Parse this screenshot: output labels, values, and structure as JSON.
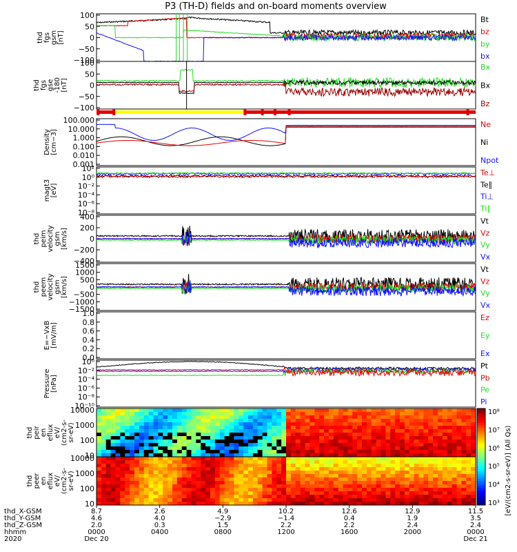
{
  "title": "P3 (TH-D) fields and on-board moments overview",
  "colors": {
    "black": "#000000",
    "red": "#e00000",
    "green": "#22dd22",
    "blue": "#1010ff",
    "dark_red": "#990000",
    "yellow": "#ffff00"
  },
  "chart_data": {
    "type": "line",
    "time_range": [
      "2020-12-20 00:00",
      "2020-12-21 00:00"
    ],
    "panels": [
      {
        "ylabel": [
          "thd",
          "fgs",
          "gsm",
          "[nT]"
        ],
        "ticks": [
          "100",
          "50",
          "0",
          "−50",
          "−100"
        ],
        "legend": [
          {
            "text": "Bt",
            "color": "black"
          },
          {
            "text": "bz",
            "color": "red"
          },
          {
            "text": "by",
            "color": "green"
          },
          {
            "text": "bx",
            "color": "blue"
          }
        ]
      },
      {
        "ylabel": [
          "thd",
          "fgs",
          "gse",
          "-180",
          "[nT]"
        ],
        "ticks": [
          "100",
          "50",
          "0",
          "−50",
          "−100"
        ],
        "legend": [
          {
            "text": "Bx",
            "color": "green"
          },
          {
            "text": "Bx",
            "color": "black"
          },
          {
            "text": "Bz",
            "color": "dark_red"
          }
        ]
      },
      {
        "ylabel": [
          "Density",
          "[cm−3]"
        ],
        "ticks": [
          "100.000",
          "10.000",
          "1.000",
          "0.100",
          "0.010",
          "0.001"
        ],
        "legend": [
          {
            "text": "Ne",
            "color": "red"
          },
          {
            "text": "Ni",
            "color": "black"
          },
          {
            "text": "Npot",
            "color": "blue"
          }
        ]
      },
      {
        "ylabel": [
          "magt3",
          "[eV]"
        ],
        "ticks": [
          "10²",
          "10⁰",
          "10⁻²",
          "10⁻⁴",
          "10⁻⁶",
          "10⁻⁸"
        ],
        "legend": [
          {
            "text": "Te⊥",
            "color": "red"
          },
          {
            "text": "Te∥",
            "color": "black"
          },
          {
            "text": "Ti⊥",
            "color": "blue"
          },
          {
            "text": "Ti∥",
            "color": "green"
          }
        ]
      },
      {
        "ylabel": [
          "thd",
          "peim",
          "velocity",
          "gsm",
          "[km/s]"
        ],
        "ticks": [
          "400",
          "200",
          "0",
          "−200",
          "−400"
        ],
        "legend": [
          {
            "text": "Vt",
            "color": "black"
          },
          {
            "text": "Vz",
            "color": "red"
          },
          {
            "text": "Vy",
            "color": "green"
          },
          {
            "text": "Vx",
            "color": "blue"
          }
        ]
      },
      {
        "ylabel": [
          "thd",
          "peem",
          "velocity",
          "gsm",
          "[km/s]"
        ],
        "ticks": [
          "1500",
          "1000",
          "500",
          "0",
          "−500",
          "−1000",
          "−1500"
        ],
        "legend": [
          {
            "text": "Vt",
            "color": "black"
          },
          {
            "text": "Vz",
            "color": "red"
          },
          {
            "text": "Vy",
            "color": "green"
          },
          {
            "text": "Vx",
            "color": "blue"
          }
        ]
      },
      {
        "ylabel": [
          "E=−VxB",
          "[mV/m]"
        ],
        "ticks": [
          "1.0",
          "0.8",
          "0.6",
          "0.4",
          "0.2",
          "0.0"
        ],
        "legend": [
          {
            "text": "Ez",
            "color": "red"
          },
          {
            "text": "Ey",
            "color": "green"
          },
          {
            "text": "Ex",
            "color": "blue"
          }
        ]
      },
      {
        "ylabel": [
          "Pressure",
          "[nPa]"
        ],
        "ticks": [
          "10⁰",
          "10⁻²",
          "10⁻⁴",
          "10⁻⁶",
          "10⁻⁸",
          "10⁻¹⁰"
        ],
        "legend": [
          {
            "text": "Pt",
            "color": "black"
          },
          {
            "text": "Pb",
            "color": "red"
          },
          {
            "text": "Pe",
            "color": "green"
          },
          {
            "text": "Pi",
            "color": "blue"
          }
        ]
      },
      {
        "ylabel": [
          "thd",
          "peir",
          "en",
          "eflux",
          "eV/",
          "(cm2-s-",
          "sr-eV)"
        ],
        "ticks": [
          "10000",
          "1000",
          "100",
          "10"
        ],
        "legend": []
      },
      {
        "ylabel": [
          "thd",
          "peer",
          "en",
          "eflux",
          "eV/",
          "(cm2-s-",
          "sr-eV)"
        ],
        "ticks": [
          "10000",
          "1000",
          "100",
          "10"
        ],
        "legend": []
      }
    ],
    "colorbar": {
      "ticks": [
        "10⁸",
        "10⁷",
        "10⁶",
        "10⁵",
        "10⁴",
        "10³"
      ],
      "label": "[eV/(cm2-s-sr-eV)] (All Qs)"
    },
    "xaxis": {
      "row_labels": [
        "thd_X-GSM",
        "thd_Y-GSM",
        "thd_Z-GSM",
        "hhmm",
        "2020"
      ],
      "columns": [
        {
          "hour": 0,
          "x": "8.7",
          "y": "4.6",
          "z": "2.0",
          "hhmm": "0000",
          "date": "Dec 20"
        },
        {
          "hour": 4,
          "x": "2.6",
          "y": "4.0",
          "z": "0.3",
          "hhmm": "0400",
          "date": ""
        },
        {
          "hour": 8,
          "x": "4.9",
          "y": "−2.9",
          "z": "1.5",
          "hhmm": "0800",
          "date": ""
        },
        {
          "hour": 12,
          "x": "10.2",
          "y": "−1.4",
          "z": "2.2",
          "hhmm": "1200",
          "date": ""
        },
        {
          "hour": 16,
          "x": "12.6",
          "y": "0.4",
          "z": "2.2",
          "hhmm": "1600",
          "date": ""
        },
        {
          "hour": 20,
          "x": "12.9",
          "y": "1.9",
          "z": "2.4",
          "hhmm": "2000",
          "date": ""
        },
        {
          "hour": 24,
          "x": "11.5",
          "y": "3.5",
          "z": "2.4",
          "hhmm": "0000",
          "date": "Dec 21"
        }
      ]
    }
  }
}
